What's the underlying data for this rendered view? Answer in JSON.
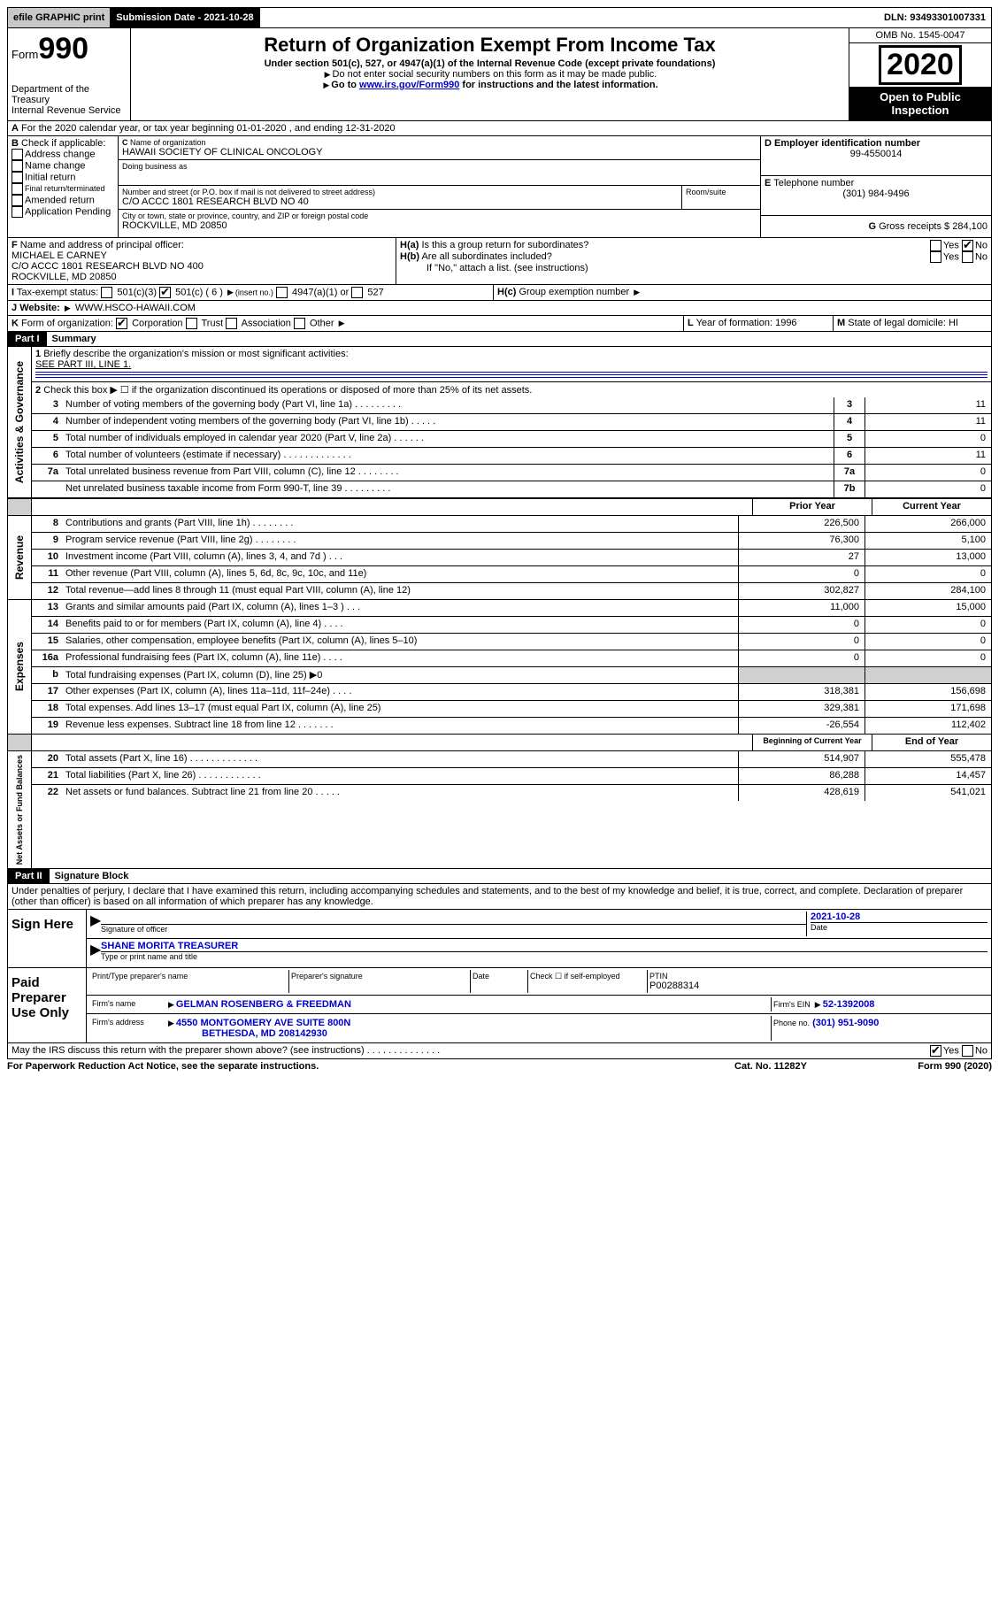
{
  "topbar": {
    "efile": "efile GRAPHIC print",
    "submission": "Submission Date - 2021-10-28",
    "dln": "DLN: 93493301007331"
  },
  "header": {
    "form_prefix": "Form",
    "form_num": "990",
    "dept": "Department of the Treasury",
    "irs": "Internal Revenue Service",
    "title": "Return of Organization Exempt From Income Tax",
    "subtitle": "Under section 501(c), 527, or 4947(a)(1) of the Internal Revenue Code (except private foundations)",
    "note1": "Do not enter social security numbers on this form as it may be made public.",
    "note2_pre": "Go to ",
    "note2_link": "www.irs.gov/Form990",
    "note2_post": " for instructions and the latest information.",
    "omb": "OMB No. 1545-0047",
    "year": "2020",
    "open": "Open to Public Inspection"
  },
  "A": {
    "text": "For the 2020 calendar year, or tax year beginning 01-01-2020   , and ending 12-31-2020"
  },
  "B": {
    "label": "Check if applicable:",
    "opts": [
      "Address change",
      "Name change",
      "Initial return",
      "Final return/terminated",
      "Amended return",
      "Application Pending"
    ]
  },
  "C": {
    "name_lbl": "Name of organization",
    "name": "HAWAII SOCIETY OF CLINICAL ONCOLOGY",
    "dba_lbl": "Doing business as",
    "addr_lbl": "Number and street (or P.O. box if mail is not delivered to street address)",
    "room_lbl": "Room/suite",
    "addr": "C/O ACCC 1801 RESEARCH BLVD NO 40",
    "city_lbl": "City or town, state or province, country, and ZIP or foreign postal code",
    "city": "ROCKVILLE, MD  20850"
  },
  "D": {
    "lbl": "Employer identification number",
    "val": "99-4550014"
  },
  "E": {
    "lbl": "Telephone number",
    "val": "(301) 984-9496"
  },
  "G": {
    "lbl": "Gross receipts $",
    "val": "284,100"
  },
  "F": {
    "lbl": "Name and address of principal officer:",
    "name": "MICHAEL E CARNEY",
    "addr1": "C/O ACCC 1801 RESEARCH BLVD NO 400",
    "addr2": "ROCKVILLE, MD  20850"
  },
  "H": {
    "a": "Is this a group return for subordinates?",
    "b": "Are all subordinates included?",
    "b_note": "If \"No,\" attach a list. (see instructions)",
    "c": "Group exemption number",
    "yes": "Yes",
    "no": "No"
  },
  "I": {
    "lbl": "Tax-exempt status:",
    "o1": "501(c)(3)",
    "o2": "501(c) ( 6 )",
    "o2s": "(insert no.)",
    "o3": "4947(a)(1) or",
    "o4": "527"
  },
  "J": {
    "lbl": "Website:",
    "val": "WWW.HSCO-HAWAII.COM"
  },
  "K": {
    "lbl": "Form of organization:",
    "o1": "Corporation",
    "o2": "Trust",
    "o3": "Association",
    "o4": "Other"
  },
  "L": {
    "lbl": "Year of formation:",
    "val": "1996"
  },
  "M": {
    "lbl": "State of legal domicile:",
    "val": "HI"
  },
  "part1": {
    "hdr": "Part I",
    "title": "Summary",
    "l1": "Briefly describe the organization's mission or most significant activities:",
    "l1v": "SEE PART III, LINE 1.",
    "l2": "Check this box ▶ ☐  if the organization discontinued its operations or disposed of more than 25% of its net assets.",
    "lines_gov": [
      {
        "n": "3",
        "t": "Number of voting members of the governing body (Part VI, line 1a)   .   .   .   .   .   .   .   .   .",
        "b": "3",
        "v": "11"
      },
      {
        "n": "4",
        "t": "Number of independent voting members of the governing body (Part VI, line 1b)   .   .   .   .   .",
        "b": "4",
        "v": "11"
      },
      {
        "n": "5",
        "t": "Total number of individuals employed in calendar year 2020 (Part V, line 2a)   .   .   .   .   .   .",
        "b": "5",
        "v": "0"
      },
      {
        "n": "6",
        "t": "Total number of volunteers (estimate if necessary)   .   .   .   .   .   .   .   .   .   .   .   .   .",
        "b": "6",
        "v": "11"
      },
      {
        "n": "7a",
        "t": "Total unrelated business revenue from Part VIII, column (C), line 12   .   .   .   .   .   .   .   .",
        "b": "7a",
        "v": "0"
      },
      {
        "n": "",
        "t": "Net unrelated business taxable income from Form 990-T, line 39   .   .   .   .   .   .   .   .   .",
        "b": "7b",
        "v": "0"
      }
    ],
    "col_prior": "Prior Year",
    "col_curr": "Current Year",
    "lines_rev": [
      {
        "n": "8",
        "t": "Contributions and grants (Part VIII, line 1h)   .   .   .   .   .   .   .   .",
        "p": "226,500",
        "c": "266,000"
      },
      {
        "n": "9",
        "t": "Program service revenue (Part VIII, line 2g)   .   .   .   .   .   .   .   .",
        "p": "76,300",
        "c": "5,100"
      },
      {
        "n": "10",
        "t": "Investment income (Part VIII, column (A), lines 3, 4, and 7d )   .   .   .",
        "p": "27",
        "c": "13,000"
      },
      {
        "n": "11",
        "t": "Other revenue (Part VIII, column (A), lines 5, 6d, 8c, 9c, 10c, and 11e)",
        "p": "0",
        "c": "0"
      },
      {
        "n": "12",
        "t": "Total revenue—add lines 8 through 11 (must equal Part VIII, column (A), line 12)",
        "p": "302,827",
        "c": "284,100"
      }
    ],
    "lines_exp": [
      {
        "n": "13",
        "t": "Grants and similar amounts paid (Part IX, column (A), lines 1–3 )   .   .   .",
        "p": "11,000",
        "c": "15,000"
      },
      {
        "n": "14",
        "t": "Benefits paid to or for members (Part IX, column (A), line 4)   .   .   .   .",
        "p": "0",
        "c": "0"
      },
      {
        "n": "15",
        "t": "Salaries, other compensation, employee benefits (Part IX, column (A), lines 5–10)",
        "p": "0",
        "c": "0"
      },
      {
        "n": "16a",
        "t": "Professional fundraising fees (Part IX, column (A), line 11e)   .   .   .   .",
        "p": "0",
        "c": "0"
      },
      {
        "n": "b",
        "t": "Total fundraising expenses (Part IX, column (D), line 25) ▶0",
        "p": "",
        "c": "",
        "gray": true
      },
      {
        "n": "17",
        "t": "Other expenses (Part IX, column (A), lines 11a–11d, 11f–24e)   .   .   .   .",
        "p": "318,381",
        "c": "156,698"
      },
      {
        "n": "18",
        "t": "Total expenses. Add lines 13–17 (must equal Part IX, column (A), line 25)",
        "p": "329,381",
        "c": "171,698"
      },
      {
        "n": "19",
        "t": "Revenue less expenses. Subtract line 18 from line 12   .   .   .   .   .   .   .",
        "p": "-26,554",
        "c": "112,402"
      }
    ],
    "col_begin": "Beginning of Current Year",
    "col_end": "End of Year",
    "lines_net": [
      {
        "n": "20",
        "t": "Total assets (Part X, line 16)   .   .   .   .   .   .   .   .   .   .   .   .   .",
        "p": "514,907",
        "c": "555,478"
      },
      {
        "n": "21",
        "t": "Total liabilities (Part X, line 26)   .   .   .   .   .   .   .   .   .   .   .   .",
        "p": "86,288",
        "c": "14,457"
      },
      {
        "n": "22",
        "t": "Net assets or fund balances. Subtract line 21 from line 20   .   .   .   .   .",
        "p": "428,619",
        "c": "541,021"
      }
    ],
    "side_gov": "Activities & Governance",
    "side_rev": "Revenue",
    "side_exp": "Expenses",
    "side_net": "Net Assets or Fund Balances"
  },
  "part2": {
    "hdr": "Part II",
    "title": "Signature Block",
    "decl": "Under penalties of perjury, I declare that I have examined this return, including accompanying schedules and statements, and to the best of my knowledge and belief, it is true, correct, and complete. Declaration of preparer (other than officer) is based on all information of which preparer has any knowledge.",
    "sign": "Sign Here",
    "sig_officer": "Signature of officer",
    "date_lbl": "Date",
    "date": "2021-10-28",
    "typed": "SHANE MORITA TREASURER",
    "typed_lbl": "Type or print name and title",
    "paid": "Paid Preparer Use Only",
    "prep_name_lbl": "Print/Type preparer's name",
    "prep_sig_lbl": "Preparer's signature",
    "check_self": "Check ☐ if self-employed",
    "ptin_lbl": "PTIN",
    "ptin": "P00288314",
    "firm_name_lbl": "Firm's name",
    "firm_name": "GELMAN ROSENBERG & FREEDMAN",
    "firm_ein_lbl": "Firm's EIN",
    "firm_ein": "52-1392008",
    "firm_addr_lbl": "Firm's address",
    "firm_addr1": "4550 MONTGOMERY AVE SUITE 800N",
    "firm_addr2": "BETHESDA, MD  208142930",
    "phone_lbl": "Phone no.",
    "phone": "(301) 951-9090",
    "discuss": "May the IRS discuss this return with the preparer shown above? (see instructions)   .   .   .   .   .   .   .   .   .   .   .   .   .   ."
  },
  "footer": {
    "pra": "For Paperwork Reduction Act Notice, see the separate instructions.",
    "cat": "Cat. No. 11282Y",
    "form": "Form 990 (2020)"
  }
}
